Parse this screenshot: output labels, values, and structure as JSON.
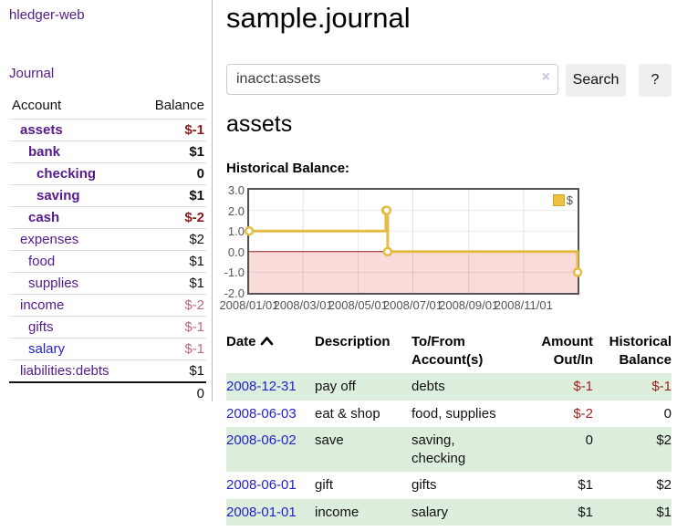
{
  "sidebar": {
    "brand": "hledger-web",
    "nav": {
      "journal": "Journal"
    },
    "accounts_table": {
      "headers": {
        "account": "Account",
        "balance": "Balance"
      },
      "rows": [
        {
          "name": "assets",
          "level": 1,
          "bold": true,
          "link_color": "purple",
          "balance": "$-1",
          "balance_style": "neg-bold"
        },
        {
          "name": "bank",
          "level": 2,
          "bold": true,
          "link_color": "purple",
          "balance": "$1",
          "balance_style": "bold"
        },
        {
          "name": "checking",
          "level": 3,
          "bold": true,
          "link_color": "purple",
          "balance": "0",
          "balance_style": "bold"
        },
        {
          "name": "saving",
          "level": 3,
          "bold": true,
          "link_color": "purple",
          "balance": "$1",
          "balance_style": "bold"
        },
        {
          "name": "cash",
          "level": 2,
          "bold": true,
          "link_color": "purple",
          "balance": "$-2",
          "balance_style": "neg-bold"
        },
        {
          "name": "expenses",
          "level": 1,
          "bold": false,
          "link_color": "purple",
          "balance": "$2",
          "balance_style": "normal"
        },
        {
          "name": "food",
          "level": 2,
          "bold": false,
          "link_color": "purple",
          "balance": "$1",
          "balance_style": "normal"
        },
        {
          "name": "supplies",
          "level": 2,
          "bold": false,
          "link_color": "purple",
          "balance": "$1",
          "balance_style": "normal"
        },
        {
          "name": "income",
          "level": 1,
          "bold": false,
          "link_color": "purple",
          "balance": "$-2",
          "balance_style": "neg-muted"
        },
        {
          "name": "gifts",
          "level": 2,
          "bold": false,
          "link_color": "purple",
          "balance": "$-1",
          "balance_style": "neg-muted"
        },
        {
          "name": "salary",
          "level": 2,
          "bold": false,
          "link_color": "blue",
          "balance": "$-1",
          "balance_style": "neg-muted"
        },
        {
          "name": "liabilities:debts",
          "level": 1,
          "bold": false,
          "link_color": "purple",
          "balance": "$1",
          "balance_style": "normal"
        }
      ],
      "total": "0"
    }
  },
  "main": {
    "title": "sample.journal",
    "search": {
      "value": "inacct:assets",
      "clear_icon": "×",
      "button": "Search",
      "help_button": "?"
    },
    "account_heading": "assets",
    "chart_label": "Historical Balance:"
  },
  "chart_data": {
    "type": "line",
    "step": true,
    "title": "Historical Balance:",
    "grid": true,
    "legend_position": "top-right",
    "x_start": "2008-01-01",
    "x_end": "2008-12-31",
    "ylim": [
      -2,
      3
    ],
    "yticks": [
      "3.0",
      "2.0",
      "1.0",
      "0.0",
      "-1.0",
      "-2.0"
    ],
    "ytick_values": [
      3,
      2,
      1,
      0,
      -1,
      -2
    ],
    "xticks": [
      {
        "label": "2008/01/01",
        "date": "2008-01-01"
      },
      {
        "label": "2008/03/01",
        "date": "2008-03-01"
      },
      {
        "label": "2008/05/01",
        "date": "2008-05-01"
      },
      {
        "label": "2008/07/01",
        "date": "2008-07-01"
      },
      {
        "label": "2008/09/01",
        "date": "2008-09-01"
      },
      {
        "label": "2008/11/01",
        "date": "2008-11-01"
      }
    ],
    "series": [
      {
        "name": "$",
        "color": "#e4bb43",
        "points": [
          {
            "date": "2008-01-01",
            "value": 1
          },
          {
            "date": "2008-06-01",
            "value": 2
          },
          {
            "date": "2008-06-02",
            "value": 2
          },
          {
            "date": "2008-06-03",
            "value": 0
          },
          {
            "date": "2008-12-31",
            "value": -1
          }
        ]
      }
    ],
    "colors": {
      "line": "#e4bb43",
      "legend_fill": "#edc240",
      "negative_fill": "#fbdada",
      "zero_line": "#8e1b1b",
      "border": "#545454",
      "tick_text": "#545454"
    }
  },
  "register": {
    "headers": {
      "date": "Date",
      "sort_direction": "ascending",
      "description": "Description",
      "account": "To/From Account(s)",
      "amount": "Amount Out/In",
      "balance": "Historical Balance"
    },
    "rows": [
      {
        "date": "2008-12-31",
        "description": "pay off",
        "accounts_lines": [
          "debts"
        ],
        "amount": "$-1",
        "amount_neg": true,
        "balance": "$-1",
        "balance_neg": true,
        "shaded": true
      },
      {
        "date": "2008-06-03",
        "description": "eat & shop",
        "accounts_lines": [
          "food, supplies"
        ],
        "amount": "$-2",
        "amount_neg": true,
        "balance": "0",
        "balance_neg": false,
        "shaded": false
      },
      {
        "date": "2008-06-02",
        "description": "save",
        "accounts_lines": [
          "saving,",
          "checking"
        ],
        "amount": "0",
        "amount_neg": false,
        "balance": "$2",
        "balance_neg": false,
        "shaded": true
      },
      {
        "date": "2008-06-01",
        "description": "gift",
        "accounts_lines": [
          "gifts"
        ],
        "amount": "$1",
        "amount_neg": false,
        "balance": "$2",
        "balance_neg": false,
        "shaded": false
      },
      {
        "date": "2008-01-01",
        "description": "income",
        "accounts_lines": [
          "salary"
        ],
        "amount": "$1",
        "amount_neg": false,
        "balance": "$1",
        "balance_neg": false,
        "shaded": true
      }
    ]
  },
  "colors": {
    "link_purple": "#551a8b",
    "link_blue": "#2222cc",
    "negative": "#9d1f1f",
    "negative_strong": "#8f1a1a",
    "negative_muted": "#bb6b7b",
    "row_stripe_green": "#ddeedd"
  }
}
